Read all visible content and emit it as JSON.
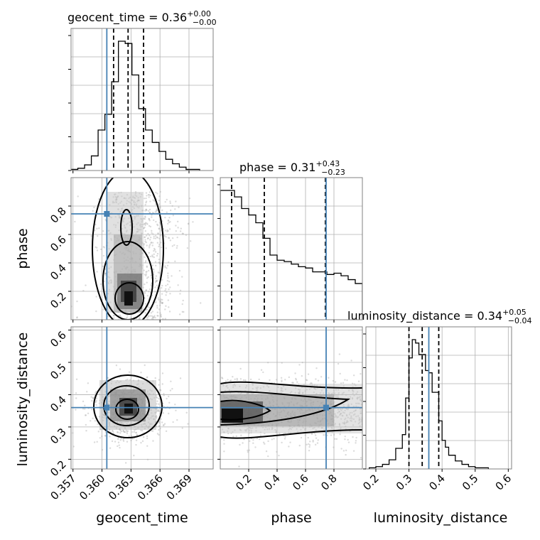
{
  "chart_data": {
    "type": "corner",
    "parameters": [
      "geocent_time",
      "phase",
      "luminosity_distance"
    ],
    "truths": {
      "geocent_time": 0.3605,
      "phase": 0.745,
      "luminosity_distance": 0.36
    },
    "colors": {
      "truth": "#4682b4",
      "hist": "#000000",
      "grid": "#b0b0b0",
      "frame": "#808080"
    },
    "titles": [
      {
        "param": "geocent_time",
        "text": "geocent_time = 0.36",
        "plus": "+0.00",
        "minus": "−0.00"
      },
      {
        "param": "phase",
        "text": "phase = 0.31",
        "plus": "+0.43",
        "minus": "−0.23"
      },
      {
        "param": "luminosity_distance",
        "text": "luminosity_distance = 0.34",
        "plus": "+0.05",
        "minus": "−0.04"
      }
    ],
    "axis_labels": {
      "x": [
        "geocent_time",
        "phase",
        "luminosity_distance"
      ],
      "y": [
        "phase",
        "luminosity_distance"
      ]
    },
    "ranges": {
      "geocent_time": [
        0.3568,
        0.3715
      ],
      "phase": [
        0.0,
        1.0
      ],
      "luminosity_distance": [
        0.17,
        0.61
      ]
    },
    "ticks": {
      "geocent_time": {
        "values": [
          0.357,
          0.36,
          0.363,
          0.366,
          0.369
        ],
        "labels": [
          "0.357",
          "0.360",
          "0.363",
          "0.366",
          "0.369"
        ]
      },
      "phase_x": {
        "values": [
          0.2,
          0.4,
          0.6,
          0.8
        ],
        "labels": [
          "0.2",
          "0.4",
          "0.6",
          "0.8"
        ]
      },
      "phase_y": {
        "values": [
          0.2,
          0.4,
          0.6,
          0.8
        ],
        "labels": [
          "0.2",
          "0.4",
          "0.6",
          "0.8"
        ]
      },
      "luminosity_distance_x": {
        "values": [
          0.2,
          0.3,
          0.4,
          0.5,
          0.6
        ],
        "labels": [
          "0.2",
          "0.3",
          "0.4",
          "0.5",
          "0.6"
        ]
      },
      "luminosity_distance_y": {
        "values": [
          0.2,
          0.3,
          0.4,
          0.5,
          0.6
        ],
        "labels": [
          "0.2",
          "0.3",
          "0.4",
          "0.5",
          "0.6"
        ]
      }
    },
    "quantile_lines": {
      "geocent_time": [
        0.3612,
        0.3627,
        0.3643
      ],
      "phase": [
        0.08,
        0.31,
        0.74
      ],
      "luminosity_distance": [
        0.3,
        0.34,
        0.39
      ]
    },
    "hist_geocent_time": {
      "bin_edges": [
        0.3568,
        0.3575,
        0.3582,
        0.3589,
        0.3596,
        0.3603,
        0.361,
        0.3617,
        0.3624,
        0.3631,
        0.3638,
        0.3645,
        0.3652,
        0.3659,
        0.3666,
        0.3673,
        0.368,
        0.3687,
        0.3694,
        0.3701
      ],
      "counts": [
        1,
        2,
        5,
        13,
        36,
        50,
        79,
        115,
        113,
        85,
        55,
        36,
        25,
        17,
        10,
        6,
        3,
        1,
        1
      ]
    },
    "hist_phase": {
      "bin_edges": [
        0.0,
        0.05,
        0.1,
        0.15,
        0.2,
        0.25,
        0.3,
        0.35,
        0.4,
        0.45,
        0.5,
        0.55,
        0.6,
        0.65,
        0.7,
        0.75,
        0.8,
        0.85,
        0.9,
        0.95,
        1.0
      ],
      "counts": [
        100,
        100,
        95,
        86,
        81,
        75,
        63,
        50,
        46,
        45,
        43,
        41,
        40,
        37,
        37,
        35,
        36,
        34,
        31,
        28
      ]
    },
    "hist_luminosity_distance": {
      "bin_edges": [
        0.18,
        0.2,
        0.22,
        0.24,
        0.26,
        0.28,
        0.29,
        0.3,
        0.31,
        0.32,
        0.33,
        0.34,
        0.35,
        0.36,
        0.37,
        0.38,
        0.39,
        0.4,
        0.41,
        0.42,
        0.44,
        0.46,
        0.48,
        0.5,
        0.52,
        0.54
      ],
      "counts": [
        1,
        2,
        4,
        8,
        18,
        30,
        62,
        97,
        113,
        110,
        100,
        100,
        86,
        84,
        67,
        67,
        42,
        25,
        19,
        12,
        7,
        4,
        2,
        1,
        1
      ]
    }
  }
}
